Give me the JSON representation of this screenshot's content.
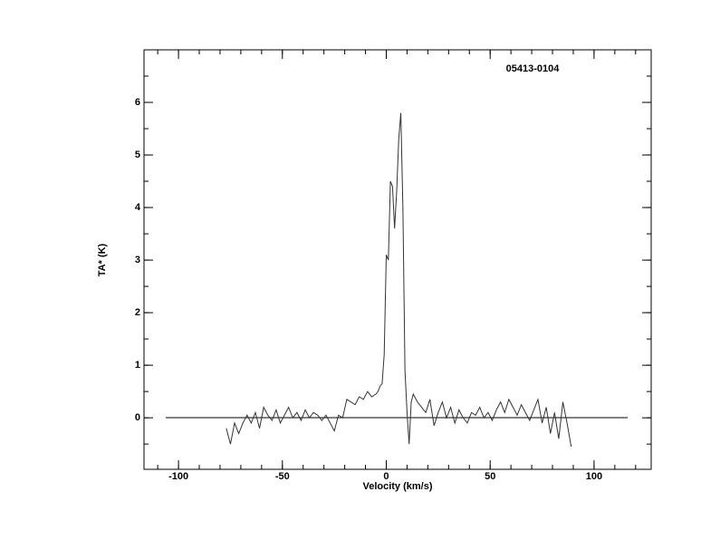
{
  "chart_data": {
    "type": "line",
    "title": "05413-0104",
    "x_label": "Velocity (km/s)",
    "y_label": "TA* (K)",
    "x": [
      -77,
      -75,
      -73,
      -71,
      -69,
      -67,
      -65,
      -63,
      -61,
      -59,
      -57,
      -55,
      -53,
      -51,
      -49,
      -47,
      -45,
      -43,
      -41,
      -39,
      -37,
      -35,
      -33,
      -31,
      -29,
      -27,
      -25,
      -23,
      -21,
      -19,
      -17,
      -15,
      -13,
      -11,
      -9,
      -7,
      -5,
      -4,
      -3,
      -2,
      -1,
      0,
      1,
      2,
      3,
      4,
      5,
      6,
      7,
      8,
      9,
      10,
      11,
      12,
      13,
      15,
      17,
      19,
      21,
      23,
      25,
      27,
      29,
      31,
      33,
      35,
      37,
      39,
      41,
      43,
      45,
      47,
      49,
      51,
      53,
      55,
      57,
      59,
      61,
      63,
      65,
      67,
      69,
      71,
      73,
      75,
      77,
      79,
      81,
      83,
      85,
      87,
      89
    ],
    "series": [
      {
        "color": "#333333",
        "values": [
          -0.2,
          -0.5,
          -0.1,
          -0.3,
          -0.1,
          0.05,
          -0.1,
          0.1,
          -0.2,
          0.2,
          0.05,
          -0.05,
          0.15,
          -0.1,
          0.05,
          0.2,
          0.0,
          0.1,
          -0.05,
          0.15,
          0.0,
          0.1,
          0.05,
          -0.05,
          0.05,
          -0.1,
          -0.25,
          0.05,
          0.0,
          0.35,
          0.3,
          0.25,
          0.4,
          0.35,
          0.5,
          0.4,
          0.45,
          0.5,
          0.6,
          0.65,
          1.2,
          3.1,
          3.0,
          4.5,
          4.4,
          3.6,
          4.3,
          5.3,
          5.8,
          4.0,
          0.9,
          0.1,
          -0.5,
          0.3,
          0.45,
          0.3,
          0.2,
          0.1,
          0.35,
          -0.15,
          0.1,
          0.3,
          0.0,
          0.2,
          -0.1,
          0.15,
          0.0,
          -0.1,
          0.1,
          0.05,
          0.2,
          0.0,
          0.1,
          -0.05,
          0.15,
          0.3,
          0.1,
          0.35,
          0.2,
          0.05,
          0.25,
          0.1,
          -0.05,
          0.15,
          0.35,
          -0.1,
          0.2,
          -0.3,
          0.1,
          -0.4,
          0.3,
          -0.1,
          -0.55
        ]
      }
    ],
    "xlim": [
      -116.6,
      127.5
    ],
    "ylim": [
      -0.98,
      7.0
    ],
    "xticks": [
      -100,
      -50,
      0,
      50,
      100
    ],
    "yticks": [
      0,
      1,
      2,
      3,
      4,
      5,
      6
    ]
  }
}
